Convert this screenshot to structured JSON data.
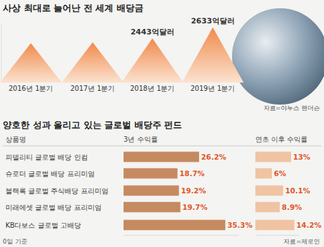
{
  "chart_data": [
    {
      "type": "bar",
      "title": "사상 최대로 늘어난 전 세계 배당금",
      "categories": [
        "2016년 1분기",
        "2017년 1분기",
        "2018년 1분기",
        "2019년 1분기"
      ],
      "values": [
        2360,
        2375,
        2443,
        2633
      ],
      "value_labels": [
        null,
        null,
        "2443억달러",
        "2633억달러"
      ],
      "data_labels": true,
      "color": "#f08a4b",
      "ylim": [
        1680,
        2700
      ],
      "yticks": [],
      "tick_labels": false,
      "source": "자료=야누스 핸더슨"
    },
    {
      "type": "bar",
      "orientation": "horizontal",
      "title": "양호한 성과 올리고 있는 글로벌 배당주 펀드",
      "category_label": "상품명",
      "categories": [
        "피델리티 글로벌 배당 인컴",
        "슈로더 글로벌 배당 프리미엄",
        "블랙록 글로벌 주식배당 프리미엄",
        "미래에셋 글로벌 배당 프리미엄",
        "KB다보스 글로벌 고배당"
      ],
      "series": [
        {
          "name": "3년 수익률",
          "color": "#c68a60",
          "xlim": [
            0,
            40
          ],
          "values": [
            26.2,
            18.7,
            19.2,
            19.7,
            35.3
          ],
          "value_labels": [
            "26.2%",
            "18.7%",
            "19.2%",
            "19.7%",
            "35.3%"
          ]
        },
        {
          "name": "연초 이후 수익률",
          "color": "#f0c3a2",
          "xlim": [
            0,
            16
          ],
          "values": [
            13,
            6,
            10.1,
            8.9,
            14.2
          ],
          "value_labels": [
            "13%",
            "6%",
            "10.1%",
            "8.9%",
            "14.2%"
          ]
        }
      ],
      "data_labels": true,
      "tick_labels": "y",
      "note": "0일 기준",
      "source": "자료=제로인"
    }
  ]
}
